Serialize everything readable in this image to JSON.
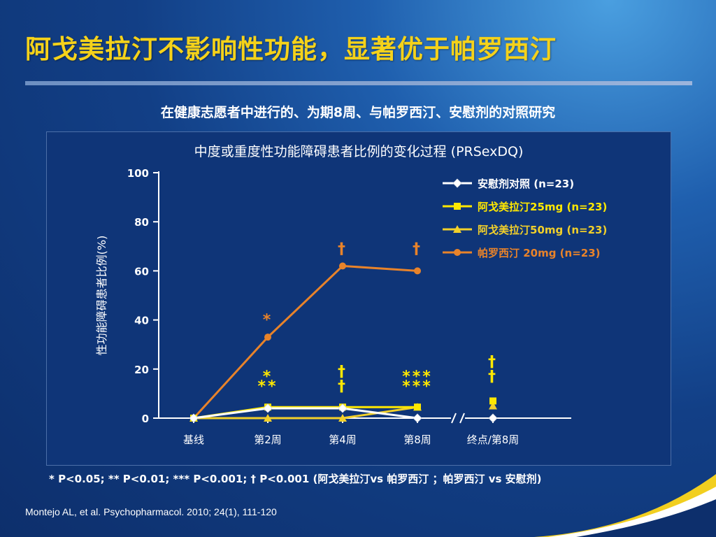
{
  "slide": {
    "title": "阿戈美拉汀不影响性功能，显著优于帕罗西汀",
    "subtitle": "在健康志愿者中进行的、为期8周、与帕罗西汀、安慰剂的对照研究",
    "footnote": "* P<0.05; ** P<0.01; *** P<0.001; † P<0.001 (阿戈美拉汀vs 帕罗西汀 ；帕罗西汀 vs 安慰剂)",
    "reference": "Montejo AL, et al. Psychopharmacol. 2010; 24(1), 111-120"
  },
  "chart_data": {
    "type": "line",
    "title": "中度或重度性功能障碍患者比例的变化过程 (PRSexDQ)",
    "ylabel": "性功能障碍患者比例(%)",
    "ylim": [
      0,
      100
    ],
    "yticks": [
      0,
      20,
      40,
      60,
      80,
      100
    ],
    "categories": [
      "基线",
      "第2周",
      "第4周",
      "第8周",
      "终点/第8周"
    ],
    "series": [
      {
        "name": "安慰剂对照 (n=23)",
        "color": "#ffffff",
        "marker": "diamond",
        "values": [
          0,
          4,
          4,
          0,
          0
        ]
      },
      {
        "name": "阿戈美拉汀25mg (n=23)",
        "color": "#ffe800",
        "marker": "square",
        "values": [
          0,
          4.5,
          4.5,
          4.5,
          7
        ]
      },
      {
        "name": "阿戈美拉汀50mg (n=23)",
        "color": "#f2d02a",
        "marker": "triangle",
        "values": [
          0,
          0,
          0,
          4.5,
          5
        ]
      },
      {
        "name": "帕罗西汀 20mg (n=23)",
        "color": "#e8832a",
        "marker": "circle",
        "values": [
          0,
          33,
          62,
          60,
          null
        ]
      }
    ],
    "annotations": [
      {
        "category": "第2周",
        "y": 38,
        "text": "*",
        "color": "#e8832a"
      },
      {
        "category": "第4周",
        "y": 67,
        "text": "†",
        "color": "#e8832a"
      },
      {
        "category": "第8周",
        "y": 67,
        "text": "†",
        "color": "#e8832a"
      },
      {
        "category": "第2周",
        "y": 15,
        "text": "*",
        "color": "#ffe800"
      },
      {
        "category": "第2周",
        "y": 11,
        "text": "**",
        "color": "#ffe800"
      },
      {
        "category": "第4周",
        "y": 17,
        "text": "†",
        "color": "#ffe800"
      },
      {
        "category": "第4周",
        "y": 11,
        "text": "†",
        "color": "#ffe800"
      },
      {
        "category": "第8周",
        "y": 15,
        "text": "***",
        "color": "#ffe800"
      },
      {
        "category": "第8周",
        "y": 11,
        "text": "***",
        "color": "#ffe800"
      },
      {
        "category": "终点/第8周",
        "y": 21,
        "text": "†",
        "color": "#ffe800"
      },
      {
        "category": "终点/第8周",
        "y": 15,
        "text": "†",
        "color": "#ffe800"
      }
    ],
    "axis_break": "//",
    "grid": false,
    "legend": "top-right"
  }
}
